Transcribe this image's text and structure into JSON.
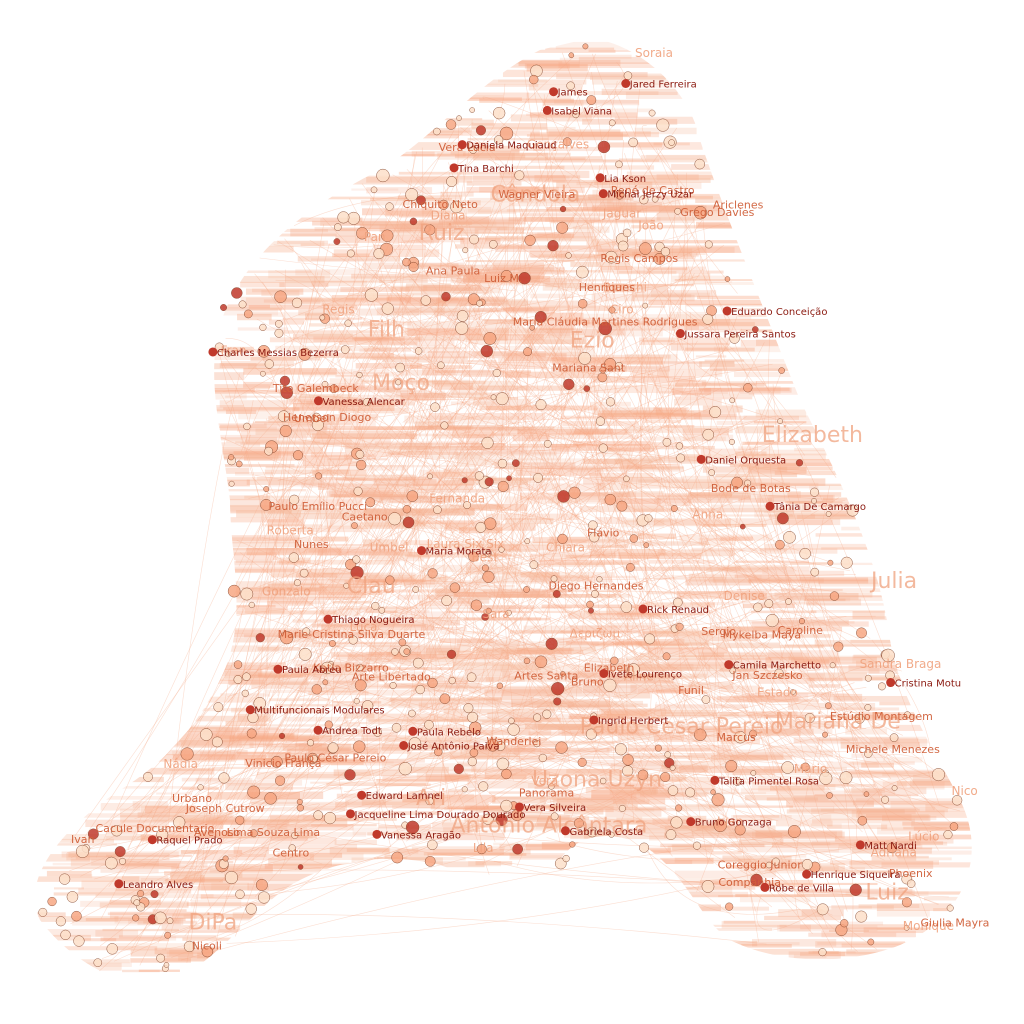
{
  "colors": {
    "background": "#ffffff",
    "edge": "#f3a07a",
    "node_fill_light": "#fde0c9",
    "node_fill_mid": "#f7a783",
    "node_fill_dark": "#c0392b",
    "label_dark": "#8b1a10",
    "label_mid": "#d0603a",
    "label_light": "#f0a27e"
  },
  "labels": {
    "dark": [
      "Vanessa Alencar",
      "Eduardo Conceição",
      "Paula Rebelo",
      "Cristina Motu",
      "Bruno Gonzaga",
      "Thiago Nogueira",
      "Ivete Lourenço",
      "Paula Abreu",
      "Charles Messias Bezerra",
      "Vanessa Aragão",
      "Tina Barchi",
      "Multifuncionais Modulares",
      "José Antônio Paiva",
      "Isabel Viana",
      "Gabriela Costa",
      "Jacqueline Lima Dourado Dourado",
      "Michał Jerzy Uzar",
      "Henrique Siqueira",
      "Matt Nardi",
      "James",
      "Maria Morata",
      "Robe de Villa",
      "Edward Lamnel",
      "Talita Pimentel Rosa",
      "Ingrid Herbert",
      "Jussara Pereira Santos",
      "Rick Renaud",
      "Raquel Prado",
      "Lia Kson",
      "Camila Marchetto",
      "Tânia De Camargo",
      "Leandro Alves",
      "Jared Ferreira",
      "Andrea Todt",
      "Daniela Maquiaud",
      "Vera Silveira",
      "Daniel Orquesta"
    ],
    "mid": [
      "Ariclenes",
      "Nunes",
      "Companhia",
      "Elizabeth",
      "Chiquito Neto",
      "Vinicio França",
      "Tito Galembeck",
      "René de Castro",
      "Michele Menezes",
      "Henerson Diogo",
      "Giulia Mayra",
      "Bode de Botas",
      "Katia Bizzarro",
      "Paulo Emílio Pucci",
      "Estúdio Montagem",
      "Regis Campos",
      "Caetano",
      "Phoenix",
      "Arte Libertado",
      "Jan Szczesko",
      "Joseph Cutrow",
      "Mykelba Maya",
      "Grego Davies",
      "Lima Souza Lima",
      "Coreggio Junior",
      "Mariana Sant",
      "Marcus",
      "Avenoso",
      "Wanderlei",
      "Urbano",
      "Caroline",
      "Paulo César Pereio",
      "Vera Lúcia",
      "Marie-Cristina Silva Duarte",
      "Luiz M.",
      "Bruno",
      "Ana Paula",
      "Flávio",
      "Maria Cláudia Martines Rodrigues",
      "Diego Hernandes",
      "Cacule Documentario",
      "Artes Santa",
      "Panorama",
      "Centro",
      "Ivan",
      "Funil",
      "Nicoli",
      "Umbel",
      "Henriques",
      "Sergio",
      "Wagner Vieira"
    ],
    "big": [
      "Mariana De",
      "Uzona Uzyn",
      "Paulo Cesar Pereio",
      "Cândola",
      "DiPa",
      "Antonio Alcântara",
      "Luiz",
      "Clau",
      "Ruiz",
      "Filh",
      "Julia",
      "Moço",
      "Ezio",
      "Elizabeth",
      "Ari"
    ],
    "light": [
      "Δεριζωμ",
      "Laura Six Six",
      "Sandra Braga",
      "Chiara",
      "Regis",
      "Estado",
      "João",
      "Diana",
      "Umbel",
      "Pan",
      "Fernanda",
      "Gonçalves",
      "Best",
      "Jaguar",
      "Bianchi",
      "Aline",
      "Monique",
      "Fran",
      "Denise",
      "Anna",
      "Luca",
      "Adriana",
      "Gonzalo",
      "Soraia",
      "Lúcio",
      "Vera",
      "Nádia",
      "Mario",
      "Juan",
      "Sara",
      "Lila",
      "Nico",
      "Ciro",
      "Roberta"
    ]
  }
}
